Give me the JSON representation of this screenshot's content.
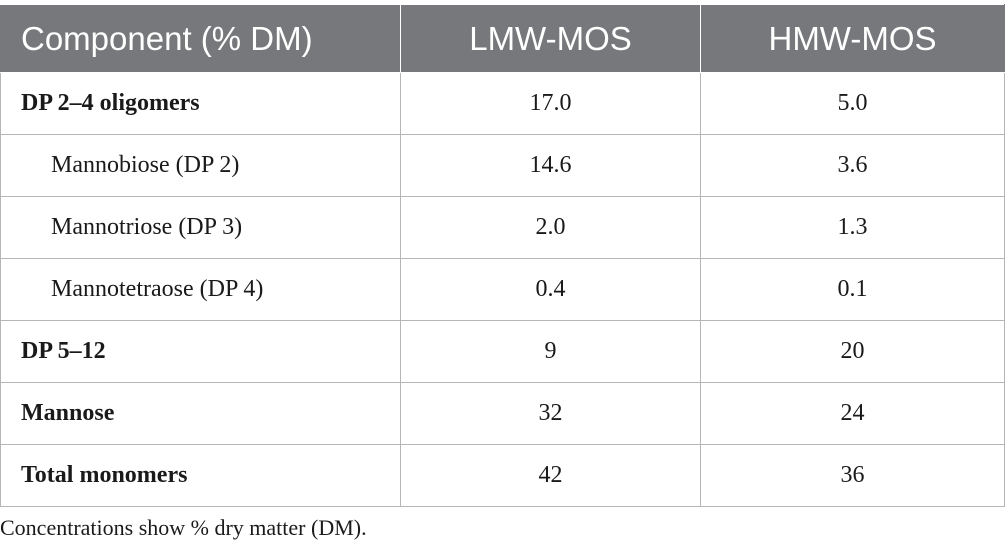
{
  "table": {
    "headers": [
      "Component (% DM)",
      "LMW-MOS",
      "HMW-MOS"
    ],
    "rows": [
      {
        "label": "DP 2–4 oligomers",
        "lmw": "17.0",
        "hmw": "5.0",
        "style": "bold"
      },
      {
        "label": "Mannobiose (DP 2)",
        "lmw": "14.6",
        "hmw": "3.6",
        "style": "indent"
      },
      {
        "label": "Mannotriose (DP 3)",
        "lmw": "2.0",
        "hmw": "1.3",
        "style": "indent"
      },
      {
        "label": "Mannotetraose (DP 4)",
        "lmw": "0.4",
        "hmw": "0.1",
        "style": "indent"
      },
      {
        "label": "DP 5–12",
        "lmw": "9",
        "hmw": "20",
        "style": "bold"
      },
      {
        "label": "Mannose",
        "lmw": "32",
        "hmw": "24",
        "style": "bold"
      },
      {
        "label": "Total monomers",
        "lmw": "42",
        "hmw": "36",
        "style": "bold"
      }
    ]
  },
  "footnote": "Concentrations show % dry matter (DM).",
  "colors": {
    "header_bg": "#77787b",
    "header_text": "#ffffff",
    "border": "#b6b6b6"
  }
}
